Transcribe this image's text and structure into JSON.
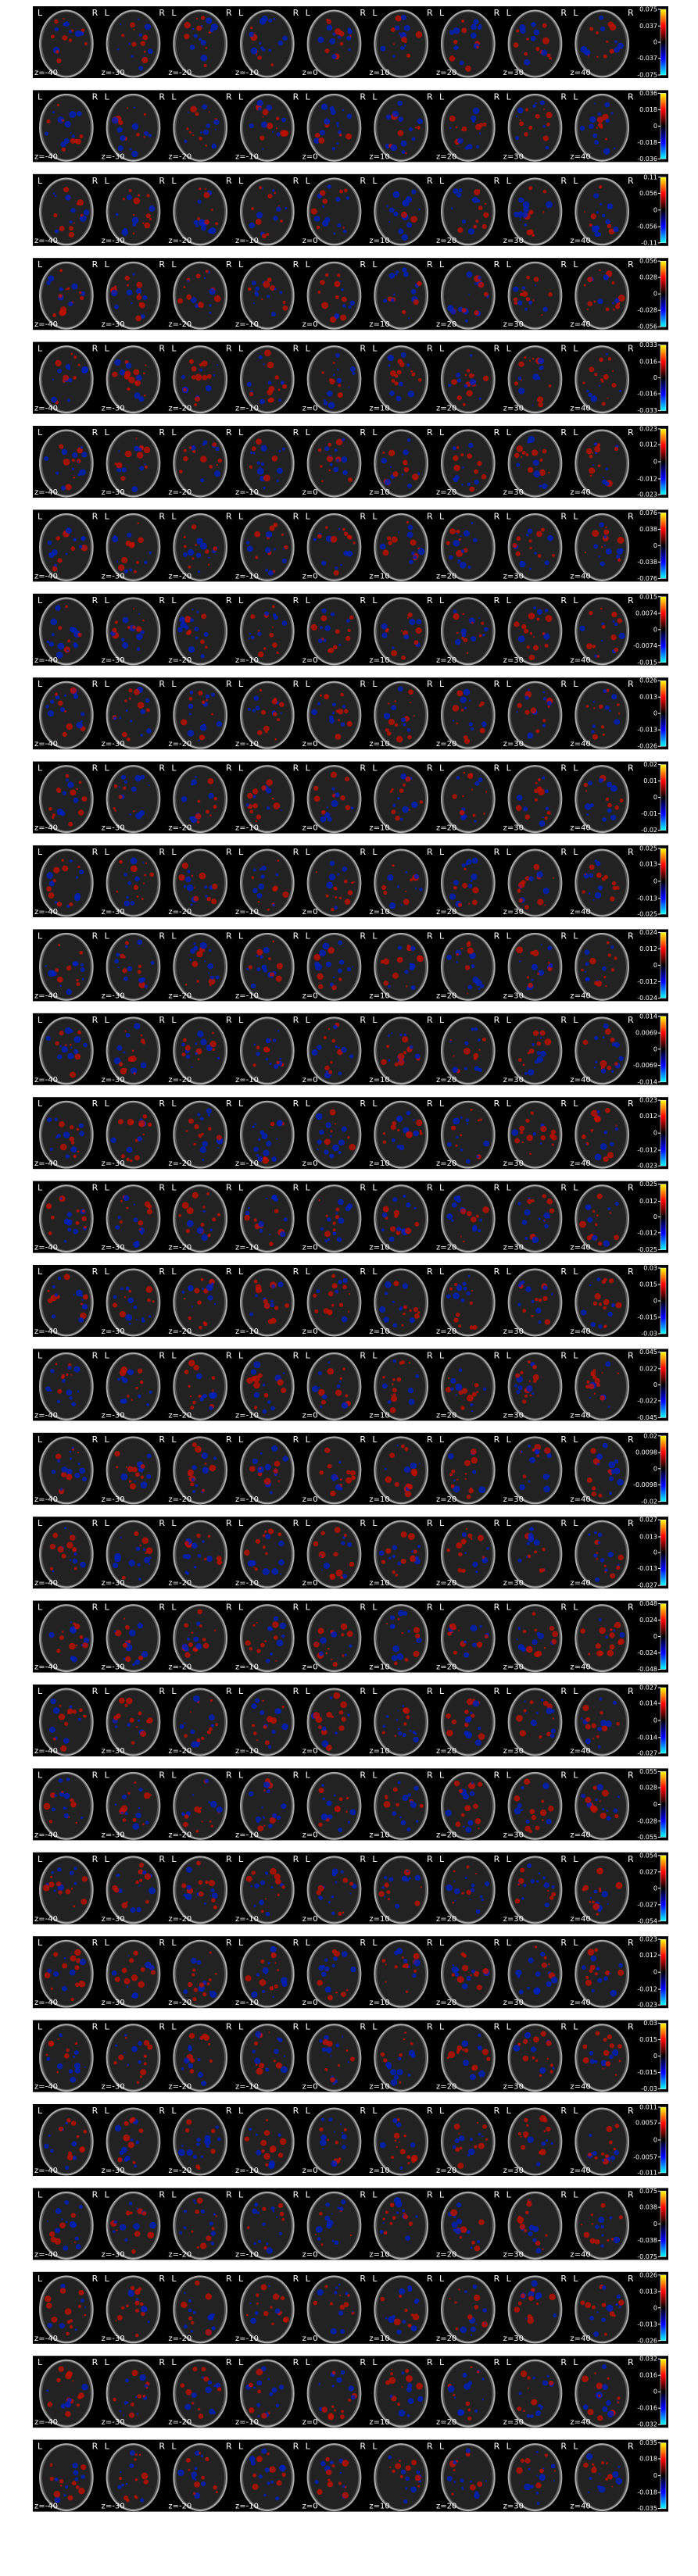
{
  "slice_labels": [
    "z=-40",
    "z=-30",
    "z=-20",
    "z=-10",
    "z=0",
    "z=10",
    "z=20",
    "z=30",
    "z=40"
  ],
  "side_labels": [
    "L",
    "R"
  ],
  "rows": [
    {
      "colorbar_ticks": [
        0.075,
        0.037,
        0,
        -0.037,
        -0.075
      ]
    },
    {
      "colorbar_ticks": [
        0.036,
        0.018,
        0,
        -0.018,
        -0.036
      ]
    },
    {
      "colorbar_ticks": [
        0.11,
        0.056,
        0,
        -0.056,
        -0.11
      ]
    },
    {
      "colorbar_ticks": [
        0.056,
        0.028,
        0,
        -0.028,
        -0.056
      ]
    },
    {
      "colorbar_ticks": [
        0.033,
        0.016,
        0,
        -0.016,
        -0.033
      ]
    },
    {
      "colorbar_ticks": [
        0.023,
        0.012,
        0,
        -0.012,
        -0.023
      ]
    },
    {
      "colorbar_ticks": [
        0.076,
        0.038,
        0,
        -0.038,
        -0.076
      ]
    },
    {
      "colorbar_ticks": [
        0.015,
        0.0074,
        0,
        -0.0074,
        -0.015
      ]
    },
    {
      "colorbar_ticks": [
        0.026,
        0.013,
        0,
        -0.013,
        -0.026
      ]
    },
    {
      "colorbar_ticks": [
        0.02,
        0.01,
        0,
        -0.01,
        -0.02
      ]
    },
    {
      "colorbar_ticks": [
        0.025,
        0.013,
        0,
        -0.013,
        -0.025
      ]
    },
    {
      "colorbar_ticks": [
        0.024,
        0.012,
        0,
        -0.012,
        -0.024
      ]
    },
    {
      "colorbar_ticks": [
        0.014,
        0.0069,
        0,
        -0.0069,
        -0.014
      ]
    },
    {
      "colorbar_ticks": [
        0.023,
        0.012,
        0,
        -0.012,
        -0.023
      ]
    },
    {
      "colorbar_ticks": [
        0.025,
        0.012,
        0,
        -0.012,
        -0.025
      ]
    },
    {
      "colorbar_ticks": [
        0.03,
        0.015,
        0,
        -0.015,
        -0.03
      ]
    },
    {
      "colorbar_ticks": [
        0.045,
        0.022,
        0,
        -0.022,
        -0.045
      ]
    },
    {
      "colorbar_ticks": [
        0.02,
        0.0098,
        0,
        -0.0098,
        -0.02
      ]
    },
    {
      "colorbar_ticks": [
        0.027,
        0.013,
        0,
        -0.013,
        -0.027
      ]
    },
    {
      "colorbar_ticks": [
        0.048,
        0.024,
        0,
        -0.024,
        -0.048
      ]
    },
    {
      "colorbar_ticks": [
        0.027,
        0.014,
        0,
        -0.014,
        -0.027
      ]
    },
    {
      "colorbar_ticks": [
        0.055,
        0.028,
        0,
        -0.028,
        -0.055
      ]
    },
    {
      "colorbar_ticks": [
        0.054,
        0.027,
        0,
        -0.027,
        -0.054
      ]
    },
    {
      "colorbar_ticks": [
        0.023,
        0.012,
        0,
        -0.012,
        -0.023
      ]
    },
    {
      "colorbar_ticks": [
        0.03,
        0.015,
        0,
        -0.015,
        -0.03
      ]
    },
    {
      "colorbar_ticks": [
        0.011,
        0.0057,
        0,
        -0.0057,
        -0.011
      ]
    },
    {
      "colorbar_ticks": [
        0.075,
        0.038,
        0,
        -0.038,
        -0.075
      ]
    },
    {
      "colorbar_ticks": [
        0.026,
        0.013,
        0,
        -0.013,
        -0.026
      ]
    },
    {
      "colorbar_ticks": [
        0.032,
        0.016,
        0,
        -0.016,
        -0.032
      ]
    },
    {
      "colorbar_ticks": [
        0.035,
        0.018,
        0,
        -0.018,
        -0.035
      ]
    }
  ]
}
